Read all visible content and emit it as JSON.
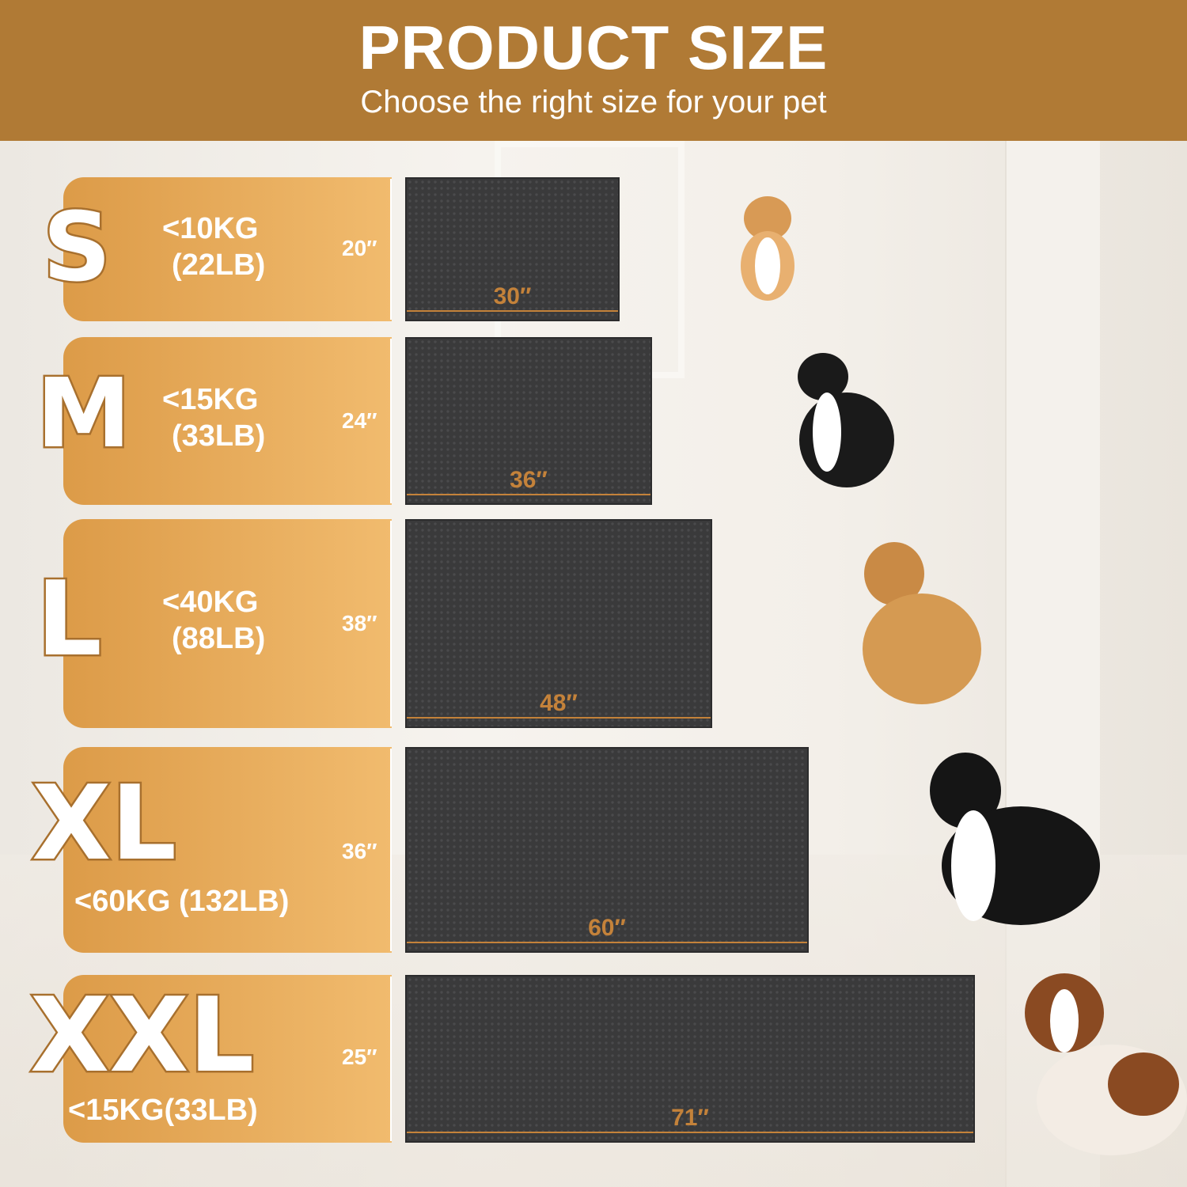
{
  "header": {
    "title": "PRODUCT SIZE",
    "subtitle": "Choose the right size for your pet"
  },
  "colors": {
    "header": "#b07a35",
    "panel": "#e8a95a",
    "mat": "#3a3a3b",
    "dimension": "#c4823a"
  },
  "sizes": [
    {
      "label": "S",
      "weight_kg": "<10KG",
      "weight_lb": "(22LB)",
      "height": "20″",
      "width": "30″",
      "dog": "corgi"
    },
    {
      "label": "M",
      "weight_kg": "<15KG",
      "weight_lb": "(33LB)",
      "height": "24″",
      "width": "36″",
      "dog": "border-collie"
    },
    {
      "label": "L",
      "weight_kg": "<40KG",
      "weight_lb": "(88LB)",
      "height": "38″",
      "width": "48″",
      "dog": "golden-retriever"
    },
    {
      "label": "XL",
      "weight": "<60KG (132LB)",
      "height": "36″",
      "width": "60″",
      "dog": "bernese-mountain-dog"
    },
    {
      "label": "XXL",
      "weight": "<15KG(33LB)",
      "height": "25″",
      "width": "71″",
      "dog": "saint-bernard"
    }
  ]
}
